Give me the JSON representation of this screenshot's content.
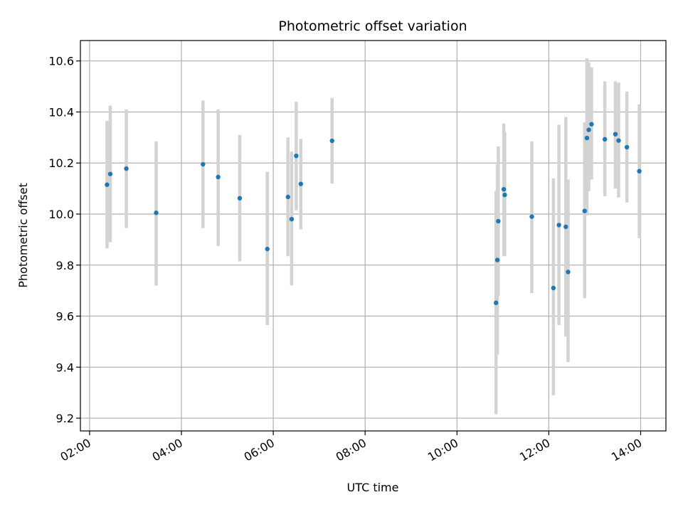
{
  "chart_data": {
    "type": "scatter",
    "title": "Photometric offset variation",
    "xlabel": "UTC time",
    "ylabel": "Photometric offset",
    "x_unit": "UTC hours",
    "xlim": [
      1.8,
      14.55
    ],
    "ylim": [
      9.15,
      10.68
    ],
    "grid": true,
    "x_ticks": [
      {
        "value": 2,
        "label": "02:00"
      },
      {
        "value": 4,
        "label": "04:00"
      },
      {
        "value": 6,
        "label": "06:00"
      },
      {
        "value": 8,
        "label": "08:00"
      },
      {
        "value": 10,
        "label": "10:00"
      },
      {
        "value": 12,
        "label": "12:00"
      },
      {
        "value": 14,
        "label": "14:00"
      }
    ],
    "y_ticks": [
      {
        "value": 9.2,
        "label": "9.2"
      },
      {
        "value": 9.4,
        "label": "9.4"
      },
      {
        "value": 9.6,
        "label": "9.6"
      },
      {
        "value": 9.8,
        "label": "9.8"
      },
      {
        "value": 10.0,
        "label": "10.0"
      },
      {
        "value": 10.2,
        "label": "10.2"
      },
      {
        "value": 10.4,
        "label": "10.4"
      },
      {
        "value": 10.6,
        "label": "10.6"
      }
    ],
    "colors": {
      "point": "#1f77b4",
      "errorbar": "#d3d3d3",
      "grid": "#b0b0b0"
    },
    "points": [
      {
        "x": 2.38,
        "y": 10.115,
        "err_low": 9.865,
        "err_high": 10.365
      },
      {
        "x": 2.45,
        "y": 10.157,
        "err_low": 9.89,
        "err_high": 10.425
      },
      {
        "x": 2.8,
        "y": 10.178,
        "err_low": 9.945,
        "err_high": 10.41
      },
      {
        "x": 3.45,
        "y": 10.005,
        "err_low": 9.72,
        "err_high": 10.285
      },
      {
        "x": 4.47,
        "y": 10.195,
        "err_low": 9.945,
        "err_high": 10.445
      },
      {
        "x": 4.8,
        "y": 10.145,
        "err_low": 9.875,
        "err_high": 10.41
      },
      {
        "x": 5.27,
        "y": 10.062,
        "err_low": 9.815,
        "err_high": 10.31
      },
      {
        "x": 5.87,
        "y": 9.863,
        "err_low": 9.565,
        "err_high": 10.165
      },
      {
        "x": 6.32,
        "y": 10.067,
        "err_low": 9.835,
        "err_high": 10.3
      },
      {
        "x": 6.4,
        "y": 9.98,
        "err_low": 9.72,
        "err_high": 10.245
      },
      {
        "x": 6.5,
        "y": 10.228,
        "err_low": 10.015,
        "err_high": 10.44
      },
      {
        "x": 6.6,
        "y": 10.118,
        "err_low": 9.94,
        "err_high": 10.295
      },
      {
        "x": 7.28,
        "y": 10.287,
        "err_low": 10.12,
        "err_high": 10.455
      },
      {
        "x": 10.85,
        "y": 9.652,
        "err_low": 9.215,
        "err_high": 10.09
      },
      {
        "x": 10.88,
        "y": 9.82,
        "err_low": 9.45,
        "err_high": 10.195
      },
      {
        "x": 10.9,
        "y": 9.972,
        "err_low": 9.68,
        "err_high": 10.265
      },
      {
        "x": 11.02,
        "y": 10.097,
        "err_low": 9.835,
        "err_high": 10.355
      },
      {
        "x": 11.04,
        "y": 10.075,
        "err_low": 9.835,
        "err_high": 10.32
      },
      {
        "x": 11.63,
        "y": 9.99,
        "err_low": 9.69,
        "err_high": 10.285
      },
      {
        "x": 12.1,
        "y": 9.71,
        "err_low": 9.29,
        "err_high": 10.14
      },
      {
        "x": 12.22,
        "y": 9.957,
        "err_low": 9.565,
        "err_high": 10.35
      },
      {
        "x": 12.37,
        "y": 9.95,
        "err_low": 9.52,
        "err_high": 10.38
      },
      {
        "x": 12.42,
        "y": 9.773,
        "err_low": 9.42,
        "err_high": 10.135
      },
      {
        "x": 12.78,
        "y": 10.012,
        "err_low": 9.67,
        "err_high": 10.36
      },
      {
        "x": 12.83,
        "y": 10.298,
        "err_low": 9.995,
        "err_high": 10.61
      },
      {
        "x": 12.87,
        "y": 10.33,
        "err_low": 10.09,
        "err_high": 10.595
      },
      {
        "x": 12.93,
        "y": 10.352,
        "err_low": 10.135,
        "err_high": 10.575
      },
      {
        "x": 13.22,
        "y": 10.293,
        "err_low": 10.07,
        "err_high": 10.52
      },
      {
        "x": 13.45,
        "y": 10.313,
        "err_low": 10.1,
        "err_high": 10.52
      },
      {
        "x": 13.52,
        "y": 10.288,
        "err_low": 10.065,
        "err_high": 10.515
      },
      {
        "x": 13.7,
        "y": 10.262,
        "err_low": 10.045,
        "err_high": 10.48
      },
      {
        "x": 13.97,
        "y": 10.168,
        "err_low": 9.905,
        "err_high": 10.43
      }
    ]
  }
}
